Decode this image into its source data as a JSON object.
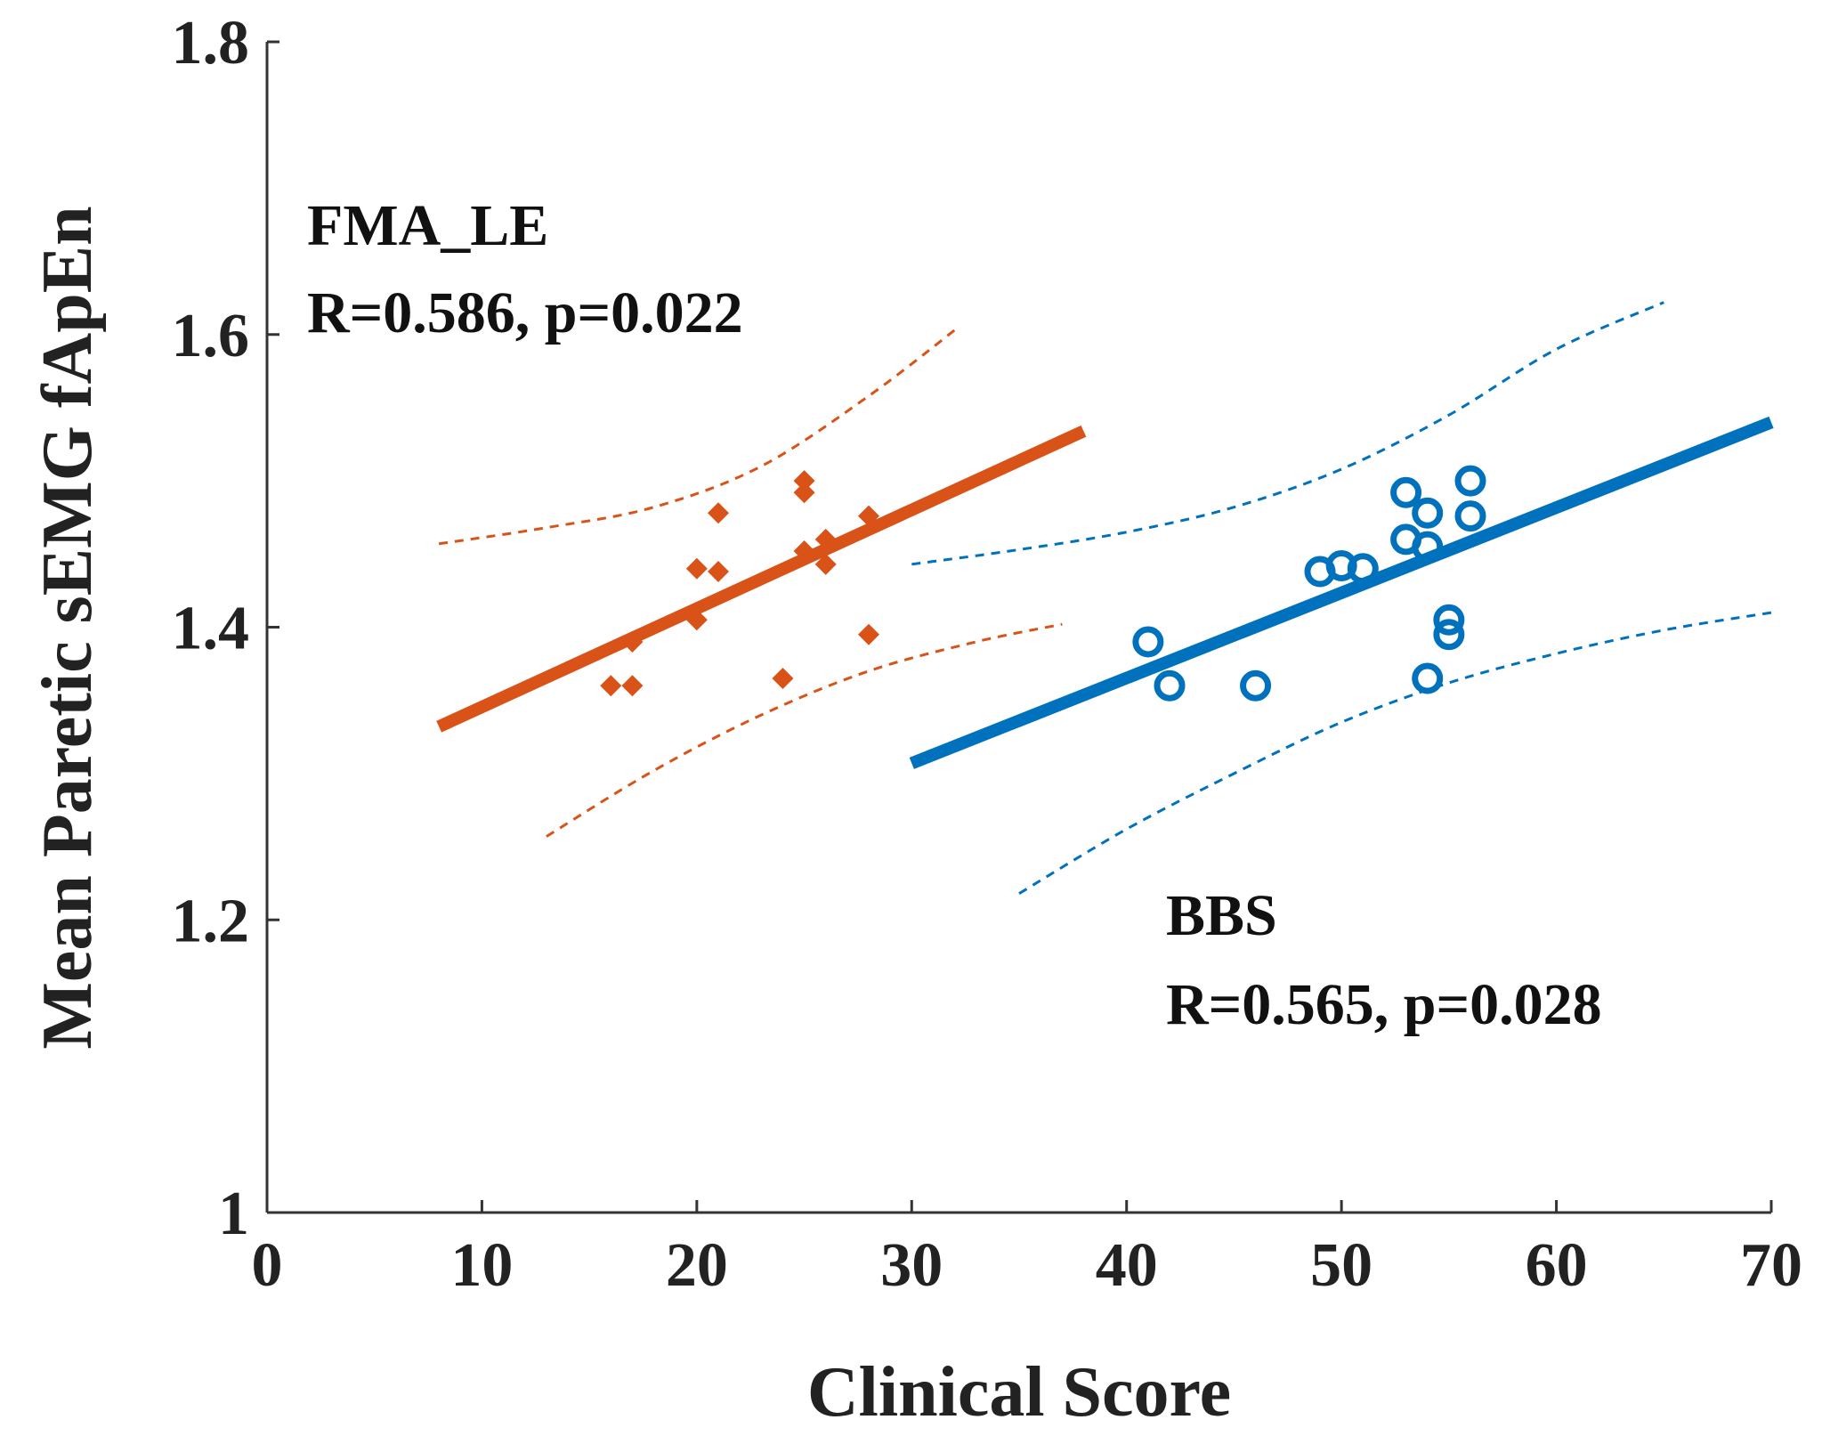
{
  "chart_data": {
    "type": "scatter",
    "xlabel": "Clinical Score",
    "ylabel": "Mean Paretic sEMG fApEn",
    "xlim": [
      0,
      70
    ],
    "ylim": [
      1,
      1.8
    ],
    "xticks": [
      "0",
      "10",
      "20",
      "30",
      "40",
      "50",
      "60",
      "70"
    ],
    "yticks": [
      "1",
      "1.2",
      "1.4",
      "1.6",
      "1.8"
    ],
    "grid": false,
    "series": [
      {
        "name": "FMA_LE",
        "color": "#d95319",
        "marker": "diamond",
        "annotation": {
          "title": "FMA_LE",
          "stats": "R=0.586, p=0.022"
        },
        "points": [
          [
            16,
            1.36
          ],
          [
            17,
            1.36
          ],
          [
            17,
            1.39
          ],
          [
            20,
            1.405
          ],
          [
            20,
            1.44
          ],
          [
            21,
            1.478
          ],
          [
            21,
            1.438
          ],
          [
            24,
            1.365
          ],
          [
            25,
            1.5
          ],
          [
            25,
            1.492
          ],
          [
            25,
            1.452
          ],
          [
            26,
            1.46
          ],
          [
            26,
            1.443
          ],
          [
            28,
            1.476
          ],
          [
            28,
            1.395
          ]
        ],
        "fit": {
          "x": [
            8,
            38
          ],
          "y": [
            1.332,
            1.534
          ]
        },
        "ci_upper": [
          [
            8,
            1.457
          ],
          [
            13,
            1.468
          ],
          [
            18,
            1.482
          ],
          [
            23,
            1.51
          ],
          [
            28,
            1.558
          ],
          [
            32,
            1.603
          ]
        ],
        "ci_lower": [
          [
            13,
            1.257
          ],
          [
            18,
            1.302
          ],
          [
            23,
            1.34
          ],
          [
            28,
            1.37
          ],
          [
            33,
            1.39
          ],
          [
            37,
            1.402
          ]
        ]
      },
      {
        "name": "BBS",
        "color": "#0072bd",
        "marker": "circle",
        "annotation": {
          "title": "BBS",
          "stats": "R=0.565, p=0.028"
        },
        "points": [
          [
            41,
            1.39
          ],
          [
            42,
            1.36
          ],
          [
            46,
            1.36
          ],
          [
            49,
            1.438
          ],
          [
            50,
            1.442
          ],
          [
            51,
            1.44
          ],
          [
            53,
            1.492
          ],
          [
            53,
            1.46
          ],
          [
            54,
            1.478
          ],
          [
            54,
            1.455
          ],
          [
            54,
            1.365
          ],
          [
            55,
            1.405
          ],
          [
            55,
            1.395
          ],
          [
            56,
            1.5
          ],
          [
            56,
            1.476
          ]
        ],
        "fit": {
          "x": [
            30,
            70
          ],
          "y": [
            1.307,
            1.54
          ]
        },
        "ci_upper": [
          [
            30,
            1.443
          ],
          [
            35,
            1.453
          ],
          [
            40,
            1.465
          ],
          [
            45,
            1.482
          ],
          [
            50,
            1.508
          ],
          [
            55,
            1.545
          ],
          [
            60,
            1.59
          ],
          [
            65,
            1.622
          ]
        ],
        "ci_lower": [
          [
            35,
            1.218
          ],
          [
            40,
            1.262
          ],
          [
            45,
            1.3
          ],
          [
            50,
            1.335
          ],
          [
            55,
            1.362
          ],
          [
            60,
            1.382
          ],
          [
            65,
            1.398
          ],
          [
            70,
            1.41
          ]
        ]
      }
    ]
  }
}
